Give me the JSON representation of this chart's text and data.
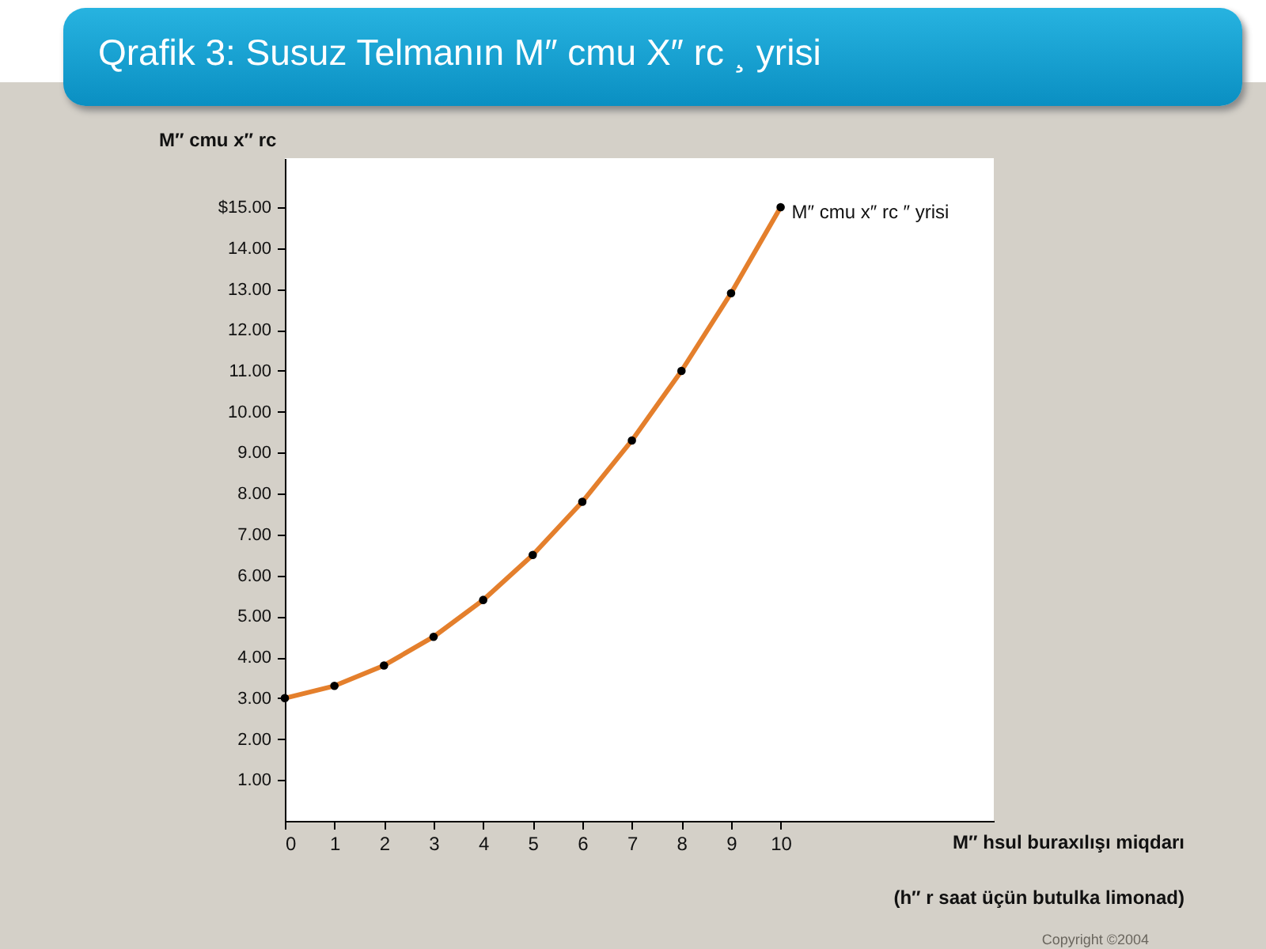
{
  "chart_data": {
    "type": "line",
    "title": "Qrafik 3: Susuz Telmanın M″ cmu X″ rc ¸ yrisi",
    "ylabel": "M″ cmu x″ rc",
    "xlabel": "M″ hsul buraxılışı miqdarı\n(h″ r saat üçün butulka limonad)",
    "x": [
      0,
      1,
      2,
      3,
      4,
      5,
      6,
      7,
      8,
      9,
      10
    ],
    "series": [
      {
        "name": "M″ cmu x″ rc ″ yrisi",
        "color": "#e47f2c",
        "values": [
          3.0,
          3.3,
          3.8,
          4.5,
          5.4,
          6.5,
          7.8,
          9.3,
          11.0,
          12.9,
          15.0
        ]
      }
    ],
    "xlim": [
      0,
      14.3
    ],
    "ylim": [
      0,
      16.2
    ],
    "xticks": [
      0,
      1,
      2,
      3,
      4,
      5,
      6,
      7,
      8,
      9,
      10
    ],
    "yticks": [
      {
        "value": 1,
        "label": "1.00"
      },
      {
        "value": 2,
        "label": "2.00"
      },
      {
        "value": 3,
        "label": "3.00"
      },
      {
        "value": 4,
        "label": "4.00"
      },
      {
        "value": 5,
        "label": "5.00"
      },
      {
        "value": 6,
        "label": "6.00"
      },
      {
        "value": 7,
        "label": "7.00"
      },
      {
        "value": 8,
        "label": "8.00"
      },
      {
        "value": 9,
        "label": "9.00"
      },
      {
        "value": 10,
        "label": "10.00"
      },
      {
        "value": 11,
        "label": "11.00"
      },
      {
        "value": 12,
        "label": "12.00"
      },
      {
        "value": 13,
        "label": "13.00"
      },
      {
        "value": 14,
        "label": "14.00"
      },
      {
        "value": 15,
        "label": "$15.00"
      }
    ],
    "marker": "circle",
    "line_style": "solid",
    "grid": false,
    "annotations": [
      "Copyright ©2004"
    ]
  }
}
